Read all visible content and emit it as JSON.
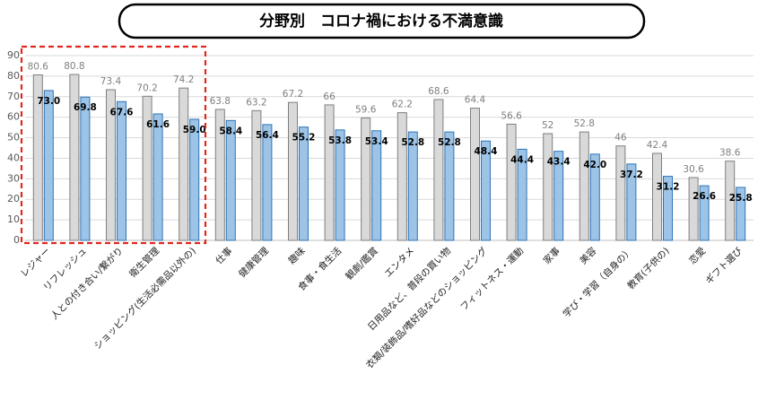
{
  "chart_data": {
    "type": "bar",
    "title": "分野別　コロナ禍における不満意識",
    "categories": [
      "レジャー",
      "リフレッシュ",
      "人との付き合い/繋がり",
      "衛生管理",
      "ショッピング(生活必需品以外の)",
      "仕事",
      "健康管理",
      "趣味",
      "食事・食生活",
      "観劇/鑑賞",
      "エンタメ",
      "日用品など、普段の買い物",
      "衣類/装飾品/嗜好品などのショッピング",
      "フィットネス・運動",
      "家事",
      "美容",
      "学び・学習（自身の）",
      "教育(子供の)",
      "恋愛",
      "ギフト選び"
    ],
    "series": [
      {
        "color": "#d9d9d9",
        "values": [
          80.6,
          80.8,
          73.4,
          70.2,
          74.2,
          63.8,
          63.2,
          67.2,
          66,
          59.6,
          62.2,
          68.6,
          64.4,
          56.6,
          52,
          52.8,
          46,
          42.4,
          30.6,
          38.6
        ]
      },
      {
        "color": "#9dc3e6",
        "values": [
          73.0,
          69.8,
          67.6,
          61.6,
          59.0,
          58.4,
          56.4,
          55.2,
          53.8,
          53.4,
          52.8,
          52.8,
          48.4,
          44.4,
          43.4,
          42.0,
          37.2,
          31.2,
          26.6,
          25.8
        ],
        "value_labels": [
          "73.0",
          "69.8",
          "67.6",
          "61.6",
          "59.0",
          "58.4",
          "56.4",
          "55.2",
          "53.8",
          "53.4",
          "52.8",
          "52.8",
          "48.4",
          "44.4",
          "43.4",
          "42.0",
          "37.2",
          "31.2",
          "26.6",
          "25.8"
        ]
      }
    ],
    "ylim": [
      0,
      90
    ],
    "yticks": [
      0,
      10,
      20,
      30,
      40,
      50,
      60,
      70,
      80,
      90
    ],
    "grid": true
  }
}
